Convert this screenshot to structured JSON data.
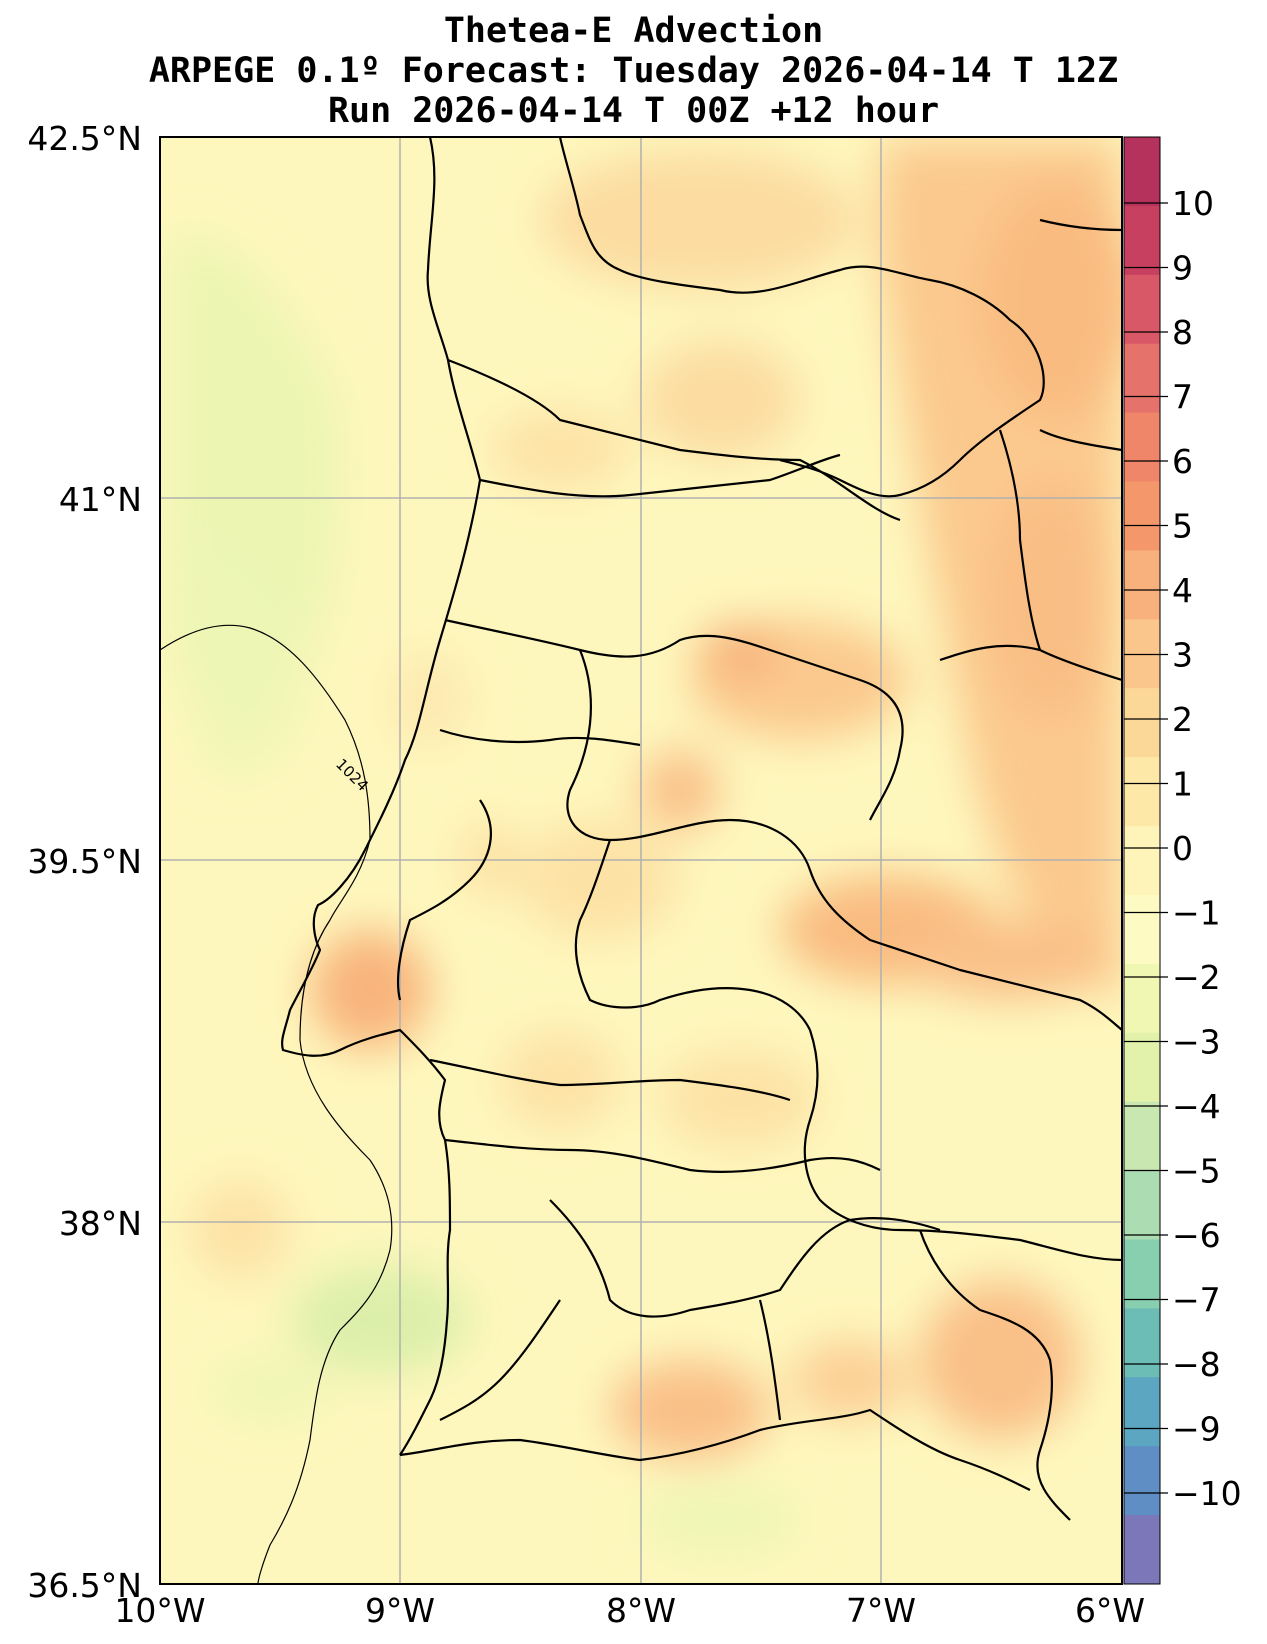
{
  "title": {
    "line1": "Thetea-E Advection",
    "line2": "ARPEGE 0.1º Forecast: Tuesday 2026-04-14 T 12Z",
    "line3": "Run 2026-04-14 T 00Z +12 hour"
  },
  "axes": {
    "lat_ticks": [
      {
        "value": 42.5,
        "label": "42.5°N"
      },
      {
        "value": 41.0,
        "label": "41°N"
      },
      {
        "value": 39.5,
        "label": "39.5°N"
      },
      {
        "value": 38.0,
        "label": "38°N"
      },
      {
        "value": 36.5,
        "label": "36.5°N"
      }
    ],
    "lon_ticks": [
      {
        "value": -10,
        "label": "10°W"
      },
      {
        "value": -9,
        "label": "9°W"
      },
      {
        "value": -8,
        "label": "8°W"
      },
      {
        "value": -7,
        "label": "7°W"
      },
      {
        "value": -6,
        "label": "6°W"
      }
    ],
    "lat_range": [
      36.5,
      42.5
    ],
    "lon_range": [
      -10,
      -6
    ],
    "grid": true
  },
  "colorbar": {
    "ticks": [
      10,
      9,
      8,
      7,
      6,
      5,
      4,
      3,
      2,
      1,
      0,
      -1,
      -2,
      -3,
      -4,
      -5,
      -6,
      -7,
      -8,
      -9,
      -10
    ],
    "tick_labels": [
      "10",
      "9",
      "8",
      "7",
      "6",
      "5",
      "4",
      "3",
      "2",
      "1",
      "0",
      "−1",
      "−2",
      "−3",
      "−4",
      "−5",
      "−6",
      "−7",
      "−8",
      "−9",
      "−10"
    ],
    "colors": [
      "#b5325c",
      "#c8405f",
      "#d95867",
      "#e5726b",
      "#ef866a",
      "#f4986b",
      "#f8b07c",
      "#fbc68b",
      "#fcd898",
      "#fee8a8",
      "#fef3b8",
      "#fdfbc3",
      "#f0f7b2",
      "#e2f2ab",
      "#c8e7b1",
      "#acdcb2",
      "#88cfb0",
      "#6bbdb6",
      "#5ca6c2",
      "#5f8ec4",
      "#7b77b8"
    ]
  },
  "contour": {
    "label": "1024"
  },
  "chart_data": {
    "type": "heatmap",
    "variable": "Thetea-E Advection",
    "scale_min": -10,
    "scale_max": 10,
    "pressure_isobar_label": "1024"
  }
}
